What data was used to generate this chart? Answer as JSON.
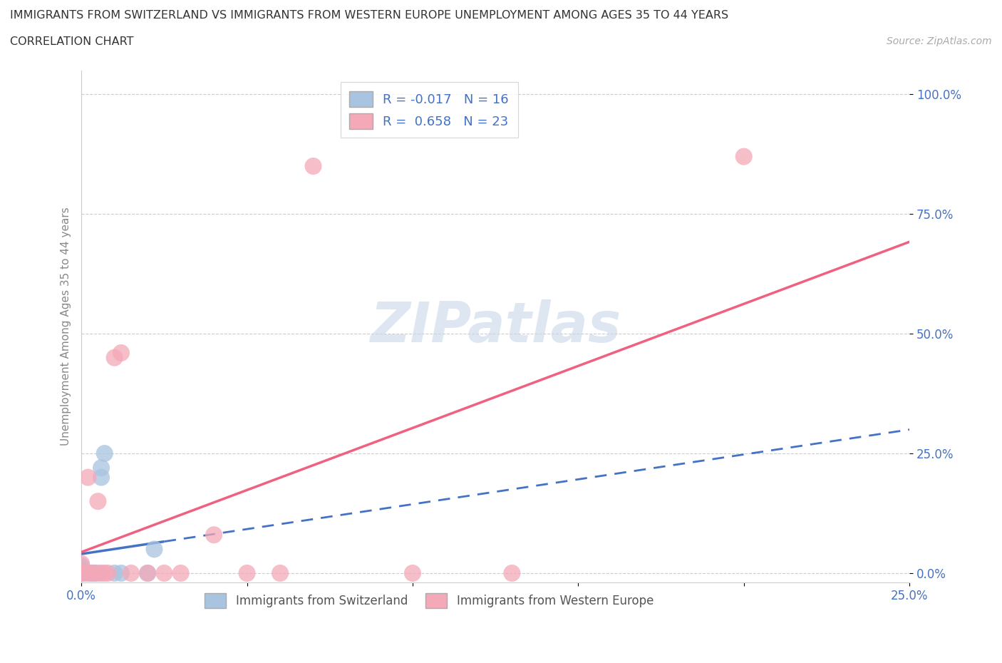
{
  "title_line1": "IMMIGRANTS FROM SWITZERLAND VS IMMIGRANTS FROM WESTERN EUROPE UNEMPLOYMENT AMONG AGES 35 TO 44 YEARS",
  "title_line2": "CORRELATION CHART",
  "source_text": "Source: ZipAtlas.com",
  "xlabel": "Immigrants from Switzerland",
  "ylabel": "Unemployment Among Ages 35 to 44 years",
  "xlim": [
    0.0,
    0.25
  ],
  "ylim": [
    -0.02,
    1.05
  ],
  "x_ticks": [
    0.0,
    0.05,
    0.1,
    0.15,
    0.2,
    0.25
  ],
  "x_tick_labels": [
    "0.0%",
    "",
    "",
    "",
    "",
    "25.0%"
  ],
  "y_ticks": [
    0.0,
    0.25,
    0.5,
    0.75,
    1.0
  ],
  "y_tick_labels": [
    "0.0%",
    "25.0%",
    "50.0%",
    "75.0%",
    "100.0%"
  ],
  "switzerland_color": "#a8c4e0",
  "western_europe_color": "#f4a8b8",
  "switzerland_line_color": "#4472c4",
  "western_europe_line_color": "#f06080",
  "r_switzerland": -0.017,
  "n_switzerland": 16,
  "r_western_europe": 0.658,
  "n_western_europe": 23,
  "switzerland_x": [
    0.0,
    0.0,
    0.0,
    0.0,
    0.002,
    0.003,
    0.003,
    0.004,
    0.005,
    0.006,
    0.006,
    0.007,
    0.01,
    0.012,
    0.02,
    0.022
  ],
  "switzerland_y": [
    0.0,
    0.0,
    0.01,
    0.015,
    0.0,
    0.0,
    0.0,
    0.0,
    0.0,
    0.2,
    0.22,
    0.25,
    0.0,
    0.0,
    0.0,
    0.05
  ],
  "western_europe_x": [
    0.0,
    0.0,
    0.001,
    0.002,
    0.003,
    0.004,
    0.005,
    0.006,
    0.007,
    0.008,
    0.01,
    0.012,
    0.015,
    0.02,
    0.025,
    0.03,
    0.04,
    0.05,
    0.06,
    0.07,
    0.1,
    0.13,
    0.2
  ],
  "western_europe_y": [
    0.0,
    0.02,
    0.0,
    0.2,
    0.0,
    0.0,
    0.15,
    0.0,
    0.0,
    0.0,
    0.45,
    0.46,
    0.0,
    0.0,
    0.0,
    0.0,
    0.08,
    0.0,
    0.0,
    0.85,
    0.0,
    0.0,
    0.87
  ],
  "grid_color": "#cccccc",
  "background_color": "#ffffff",
  "watermark_text": "ZIPatlas",
  "watermark_color": "#c8d8e8",
  "tick_label_color": "#4472c4",
  "ylabel_color": "#888888",
  "title_color": "#333333"
}
